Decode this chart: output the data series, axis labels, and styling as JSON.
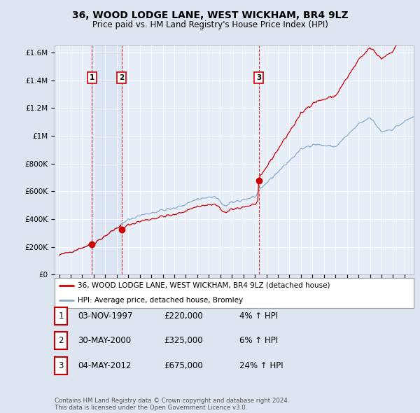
{
  "title": "36, WOOD LODGE LANE, WEST WICKHAM, BR4 9LZ",
  "subtitle": "Price paid vs. HM Land Registry's House Price Index (HPI)",
  "bg_color": "#dde5f0",
  "plot_bg_color": "#e8eef8",
  "sale_year_nums": [
    1997.836,
    2000.413,
    2012.336
  ],
  "sale_prices": [
    220000,
    325000,
    675000
  ],
  "sale_labels": [
    "1",
    "2",
    "3"
  ],
  "legend_entries": [
    "36, WOOD LODGE LANE, WEST WICKHAM, BR4 9LZ (detached house)",
    "HPI: Average price, detached house, Bromley"
  ],
  "table_rows": [
    [
      "1",
      "03-NOV-1997",
      "£220,000",
      "4% ↑ HPI"
    ],
    [
      "2",
      "30-MAY-2000",
      "£325,000",
      "6% ↑ HPI"
    ],
    [
      "3",
      "04-MAY-2012",
      "£675,000",
      "24% ↑ HPI"
    ]
  ],
  "footer": "Contains HM Land Registry data © Crown copyright and database right 2024.\nThis data is licensed under the Open Government Licence v3.0.",
  "line_color_red": "#cc0000",
  "line_color_blue": "#88aacc",
  "ylim": [
    0,
    1650000
  ],
  "yticks": [
    0,
    200000,
    400000,
    600000,
    800000,
    1000000,
    1200000,
    1400000,
    1600000
  ],
  "ytick_labels": [
    "£0",
    "£200K",
    "£400K",
    "£600K",
    "£800K",
    "£1M",
    "£1.2M",
    "£1.4M",
    "£1.6M"
  ],
  "xlim": [
    1994.6,
    2025.8
  ]
}
